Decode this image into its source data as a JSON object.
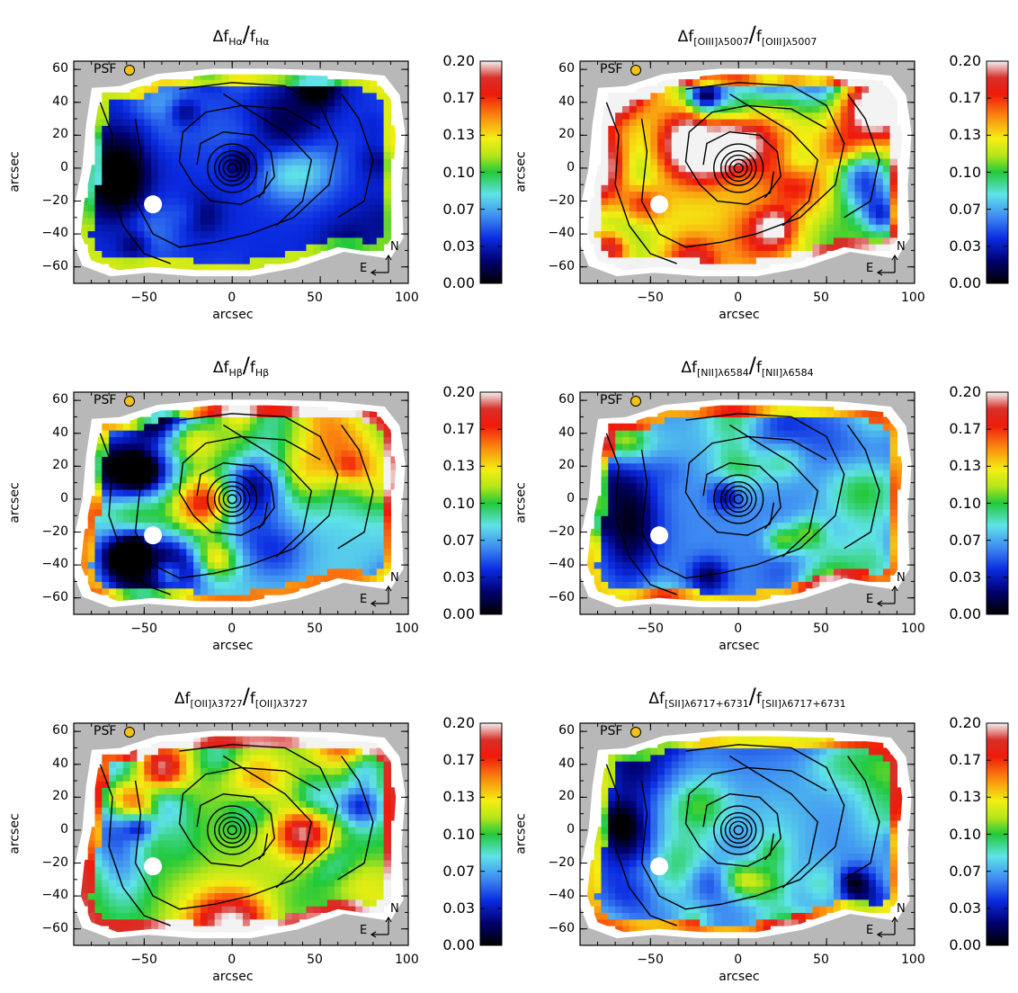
{
  "figure": {
    "psf_label": "PSF",
    "compass": {
      "north": "N",
      "east": "E"
    },
    "colors": {
      "background": "#b8b8b8",
      "psf_marker": "#f3c218",
      "contour": "#000000"
    },
    "colorbar_stops": [
      {
        "v": 0.0,
        "c": "#000000"
      },
      {
        "v": 0.02,
        "c": "#00006e"
      },
      {
        "v": 0.04,
        "c": "#0a2ae0"
      },
      {
        "v": 0.06,
        "c": "#3e8bf2"
      },
      {
        "v": 0.08,
        "c": "#5fe3e8"
      },
      {
        "v": 0.1,
        "c": "#22c93a"
      },
      {
        "v": 0.115,
        "c": "#b6e61a"
      },
      {
        "v": 0.13,
        "c": "#f3ef12"
      },
      {
        "v": 0.15,
        "c": "#fb8a10"
      },
      {
        "v": 0.17,
        "c": "#f01a0a"
      },
      {
        "v": 0.185,
        "c": "#d8302a"
      },
      {
        "v": 0.2,
        "c": "#f3f3f3"
      }
    ]
  },
  "chart_data": [
    {
      "type": "heatmap",
      "title": {
        "delta": "Δf",
        "num_sub": "Hα",
        "den_f": "f",
        "den_sub": "Hα"
      },
      "xlabel": "arcsec",
      "ylabel": "arcsec",
      "xlim": [
        -90,
        100
      ],
      "ylim": [
        -70,
        65
      ],
      "xticks": [
        "−50",
        "0",
        "50",
        "100"
      ],
      "yticks": [
        "60",
        "40",
        "20",
        "0",
        "−20",
        "−40",
        "−60"
      ],
      "colorbar": {
        "range": [
          0.0,
          0.2
        ],
        "ticks": [
          "0.20",
          "0.17",
          "0.13",
          "0.10",
          "0.07",
          "0.03",
          "0.00"
        ]
      },
      "level": 0.04,
      "variation": 0.04,
      "seed": 3
    },
    {
      "type": "heatmap",
      "title": {
        "delta": "Δf",
        "num_sub": "[OIII]λ5007",
        "den_f": "f",
        "den_sub": "[OIII]λ5007"
      },
      "xlabel": "arcsec",
      "ylabel": "arcsec",
      "xlim": [
        -90,
        100
      ],
      "ylim": [
        -70,
        65
      ],
      "xticks": [
        "−50",
        "0",
        "50",
        "100"
      ],
      "yticks": [
        "60",
        "40",
        "20",
        "0",
        "−20",
        "−40",
        "−60"
      ],
      "colorbar": {
        "range": [
          0.0,
          0.2
        ],
        "ticks": [
          "0.20",
          "0.17",
          "0.13",
          "0.10",
          "0.07",
          "0.03",
          "0.00"
        ]
      },
      "level": 0.13,
      "variation": 0.09,
      "seed": 11
    },
    {
      "type": "heatmap",
      "title": {
        "delta": "Δf",
        "num_sub": "Hβ",
        "den_f": "f",
        "den_sub": "Hβ"
      },
      "xlabel": "arcsec",
      "ylabel": "arcsec",
      "xlim": [
        -90,
        100
      ],
      "ylim": [
        -70,
        65
      ],
      "xticks": [
        "−50",
        "0",
        "50",
        "100"
      ],
      "yticks": [
        "60",
        "40",
        "20",
        "0",
        "−20",
        "−40",
        "−60"
      ],
      "colorbar": {
        "range": [
          0.0,
          0.2
        ],
        "ticks": [
          "0.20",
          "0.17",
          "0.13",
          "0.10",
          "0.07",
          "0.03",
          "0.00"
        ]
      },
      "level": 0.075,
      "variation": 0.07,
      "seed": 21
    },
    {
      "type": "heatmap",
      "title": {
        "delta": "Δf",
        "num_sub": "[NII]λ6584",
        "den_f": "f",
        "den_sub": "[NII]λ6584"
      },
      "xlabel": "arcsec",
      "ylabel": "arcsec",
      "xlim": [
        -90,
        100
      ],
      "ylim": [
        -70,
        65
      ],
      "xticks": [
        "−50",
        "0",
        "50",
        "100"
      ],
      "yticks": [
        "60",
        "40",
        "20",
        "0",
        "−20",
        "−40",
        "−60"
      ],
      "colorbar": {
        "range": [
          0.0,
          0.2
        ],
        "ticks": [
          "0.20",
          "0.17",
          "0.13",
          "0.10",
          "0.07",
          "0.03",
          "0.00"
        ]
      },
      "level": 0.06,
      "variation": 0.05,
      "seed": 31
    },
    {
      "type": "heatmap",
      "title": {
        "delta": "Δf",
        "num_sub": "[OII]λ3727",
        "den_f": "f",
        "den_sub": "[OII]λ3727"
      },
      "xlabel": "arcsec",
      "ylabel": "arcsec",
      "xlim": [
        -90,
        100
      ],
      "ylim": [
        -70,
        65
      ],
      "xticks": [
        "−50",
        "0",
        "50",
        "100"
      ],
      "yticks": [
        "60",
        "40",
        "20",
        "0",
        "−20",
        "−40",
        "−60"
      ],
      "colorbar": {
        "range": [
          0.0,
          0.2
        ],
        "ticks": [
          "0.20",
          "0.17",
          "0.13",
          "0.10",
          "0.07",
          "0.03",
          "0.00"
        ]
      },
      "level": 0.11,
      "variation": 0.08,
      "seed": 41
    },
    {
      "type": "heatmap",
      "title": {
        "delta": "Δf",
        "num_sub": "[SII]λ6717+6731",
        "den_f": "f",
        "den_sub": "[SII]λ6717+6731"
      },
      "xlabel": "arcsec",
      "ylabel": "arcsec",
      "xlim": [
        -90,
        100
      ],
      "ylim": [
        -70,
        65
      ],
      "xticks": [
        "−50",
        "0",
        "50",
        "100"
      ],
      "yticks": [
        "60",
        "40",
        "20",
        "0",
        "−20",
        "−40",
        "−60"
      ],
      "colorbar": {
        "range": [
          0.0,
          0.2
        ],
        "ticks": [
          "0.20",
          "0.17",
          "0.13",
          "0.10",
          "0.07",
          "0.03",
          "0.00"
        ]
      },
      "level": 0.06,
      "variation": 0.05,
      "seed": 51
    }
  ]
}
